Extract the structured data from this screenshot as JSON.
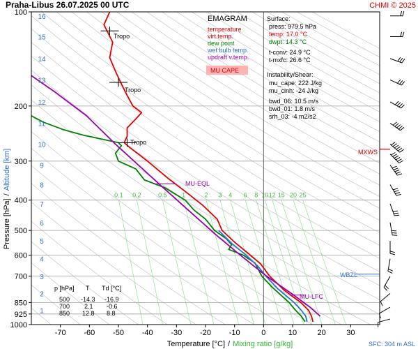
{
  "header": {
    "title": "Praha-Libus    26.07.2025 00 UTC",
    "copyright": "CHMI © 2025"
  },
  "legend": {
    "title": "EMAGRAM",
    "items": [
      {
        "label": "temperature",
        "color": "#e00000"
      },
      {
        "label": "virt.temp.",
        "color": "#e00000"
      },
      {
        "label": "dew point",
        "color": "#008000"
      },
      {
        "label": "wet bulb temp.",
        "color": "#2b6fd6"
      },
      {
        "label": "updraft v.temp.",
        "color": "#9900aa"
      }
    ],
    "highlight": "MU CAPE",
    "highlight_color": "#ffb3b3"
  },
  "info": {
    "surface_title": "Surface:",
    "press": "press: 979.5 hPa",
    "temp": "temp: 17.0 °C",
    "dwpt": "dwpt: 14.3 °C",
    "tconv": "t-conv: 24.9 °C",
    "tmxfc": "t-mxfc: 26.6 °C",
    "instab_title": "Instability/Shear:",
    "mu_cape": "mu_cape: 222 J/kg",
    "mu_cinh": "mu_cinh: -24 J/kg",
    "bwd06": "bwd_06: 10.5 m/s",
    "bwd01": "bwd_01: 1.8 m/s",
    "srh03": "srh_03: -4 m2/s2"
  },
  "table": {
    "headers": [
      "p [hPa]",
      "T",
      "Td [°C]"
    ],
    "rows": [
      [
        "500",
        "-14.3",
        "-16.9"
      ],
      [
        "700",
        "2.1",
        "-0.6"
      ],
      [
        "850",
        "12.8",
        "8.8"
      ]
    ]
  },
  "axes": {
    "ylabel_pressure": "Pressure [hPa]",
    "ylabel_sep": "/",
    "ylabel_altitude": "Altitude [km]",
    "xlabel_temp": "Temperature [°C]",
    "xlabel_sep": "/",
    "xlabel_mix": "Mixing ratio [g/kg]",
    "sfc": "SFC: 304 m ASL"
  },
  "annotations": {
    "tropo": "Tropo",
    "mu_eql": "MU-EQL",
    "mu_lfc": "MU-LFC",
    "mxws": "MXWS",
    "wbzl": "WBZL"
  },
  "chart_data": {
    "type": "line",
    "title": "Praha-Libus    26.07.2025 00 UTC",
    "xlabel": "Temperature [°C] / Mixing ratio [g/kg]",
    "ylabel": "Pressure [hPa] / Altitude [km]",
    "xlim": [
      -80,
      40
    ],
    "ylim": [
      1000,
      100
    ],
    "y_scale": "log",
    "grid": true,
    "x_ticks": [
      -70,
      -60,
      -50,
      -40,
      -30,
      -20,
      -10,
      0,
      10,
      20,
      30
    ],
    "pressure_ticks": [
      100,
      200,
      300,
      400,
      500,
      600,
      700,
      850,
      925,
      1000
    ],
    "altitude_ticks_km": [
      {
        "label": "16",
        "p": 103
      },
      {
        "label": "15",
        "p": 120
      },
      {
        "label": "14",
        "p": 141
      },
      {
        "label": "13",
        "p": 165
      },
      {
        "label": "12",
        "p": 194
      },
      {
        "label": "11",
        "p": 227
      },
      {
        "label": "10",
        "p": 265
      },
      {
        "label": "9",
        "p": 309
      },
      {
        "label": "8",
        "p": 357
      },
      {
        "label": "7",
        "p": 411
      },
      {
        "label": "6",
        "p": 472
      },
      {
        "label": "5",
        "p": 540
      },
      {
        "label": "4",
        "p": 616
      },
      {
        "label": "3",
        "p": 701
      },
      {
        "label": "2",
        "p": 795
      },
      {
        "label": "1",
        "p": 899
      }
    ],
    "mixing_ratio_labels": [
      "0.1",
      "0.2",
      "0.5",
      "1",
      "2",
      "3",
      "4",
      "6",
      "8",
      "10",
      "12",
      "15",
      "20",
      "25"
    ],
    "series": [
      {
        "name": "temperature",
        "color": "#e00000",
        "points": [
          [
            -53,
            100
          ],
          [
            -55,
            110
          ],
          [
            -52,
            125
          ],
          [
            -53,
            140
          ],
          [
            -51,
            155
          ],
          [
            -49,
            170
          ],
          [
            -47,
            185
          ],
          [
            -45,
            200
          ],
          [
            -42,
            210
          ],
          [
            -44,
            220
          ],
          [
            -47,
            235
          ],
          [
            -47,
            250
          ],
          [
            -48,
            262
          ],
          [
            -46,
            272
          ],
          [
            -40,
            300
          ],
          [
            -33,
            340
          ],
          [
            -27,
            375
          ],
          [
            -21,
            415
          ],
          [
            -16,
            460
          ],
          [
            -14.3,
            500
          ],
          [
            -10,
            545
          ],
          [
            -5,
            595
          ],
          [
            -1,
            640
          ],
          [
            2.1,
            700
          ],
          [
            7,
            775
          ],
          [
            12.8,
            850
          ],
          [
            15.5,
            900
          ],
          [
            16.5,
            940
          ],
          [
            17,
            979.5
          ]
        ]
      },
      {
        "name": "dew point",
        "color": "#008000",
        "points": [
          [
            -85,
            185
          ],
          [
            -82,
            210
          ],
          [
            -76,
            225
          ],
          [
            -69,
            238
          ],
          [
            -62,
            248
          ],
          [
            -56,
            255
          ],
          [
            -50,
            262
          ],
          [
            -49,
            268
          ],
          [
            -51,
            283
          ],
          [
            -50,
            300
          ],
          [
            -44,
            318
          ],
          [
            -41,
            345
          ],
          [
            -34,
            365
          ],
          [
            -31,
            380
          ],
          [
            -27,
            400
          ],
          [
            -24,
            430
          ],
          [
            -20,
            460
          ],
          [
            -16.9,
            500
          ],
          [
            -13,
            530
          ],
          [
            -11,
            555
          ],
          [
            -12,
            575
          ],
          [
            -7,
            600
          ],
          [
            -3,
            635
          ],
          [
            -0.6,
            700
          ],
          [
            3,
            760
          ],
          [
            8.8,
            850
          ],
          [
            11,
            900
          ],
          [
            13,
            940
          ],
          [
            14.3,
            979.5
          ]
        ]
      },
      {
        "name": "wet bulb temp.",
        "color": "#2b6fd6",
        "points": [
          [
            -15.5,
            500
          ],
          [
            -11,
            550
          ],
          [
            -6,
            600
          ],
          [
            -2,
            650
          ],
          [
            0.8,
            700
          ],
          [
            5,
            770
          ],
          [
            10.5,
            850
          ],
          [
            13,
            900
          ],
          [
            14.5,
            940
          ],
          [
            15,
            979.5
          ]
        ]
      },
      {
        "name": "updraft v.temp.",
        "color": "#9900aa",
        "points": [
          [
            -89,
            140
          ],
          [
            -72,
            180
          ],
          [
            -61,
            215
          ],
          [
            -51,
            265
          ],
          [
            -36,
            355
          ],
          [
            -26,
            430
          ],
          [
            -16,
            520
          ],
          [
            -8,
            600
          ],
          [
            1,
            700
          ],
          [
            10,
            800
          ],
          [
            16,
            880
          ],
          [
            19.5,
            940
          ]
        ]
      }
    ],
    "levels": [
      {
        "label": "Tropo",
        "p": 115
      },
      {
        "label": "Tropo",
        "p": 168
      },
      {
        "label": "Tropo",
        "p": 262
      },
      {
        "label": "MU-EQL",
        "p": 355
      },
      {
        "label": "MU-LFC",
        "p": 805
      },
      {
        "label": "MXWS",
        "p": 275
      },
      {
        "label": "WBZL",
        "p": 690
      }
    ]
  }
}
